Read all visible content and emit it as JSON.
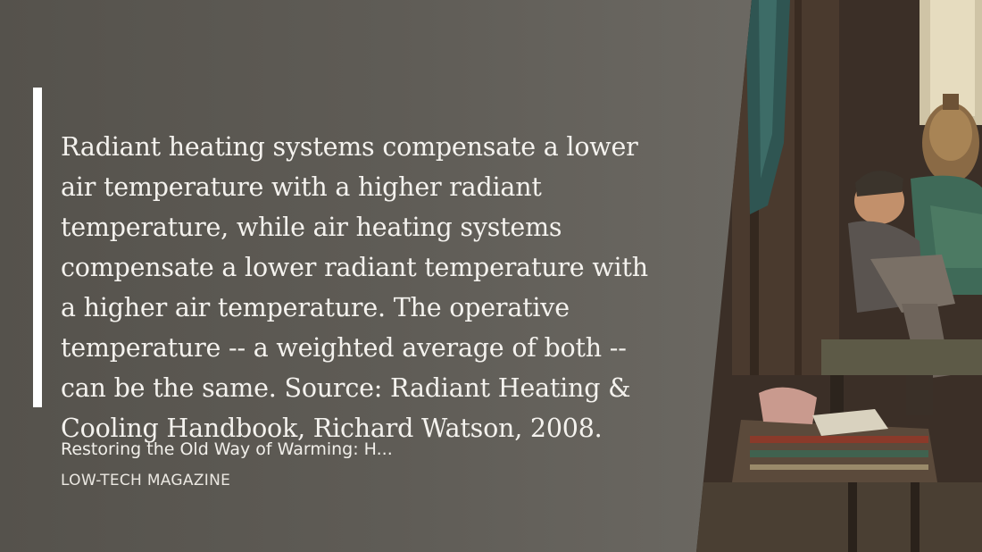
{
  "quote": {
    "text": "Radiant heating systems compensate a lower air temperature with a higher radiant temperature, while air heating systems compensate a lower radiant temperature with a higher air temperature. The operative temperature -- a weighted average of both -- can be the same. Source: Radiant Heating & Cooling Handbook, Richard Watson, 2008."
  },
  "article": {
    "title": "Restoring the Old Way of Warming: H...",
    "site": "LOW-TECH MAGAZINE"
  },
  "colors": {
    "background": "#5f5c56",
    "quote_bar": "#ffffff",
    "text": "#f4f2ee"
  }
}
